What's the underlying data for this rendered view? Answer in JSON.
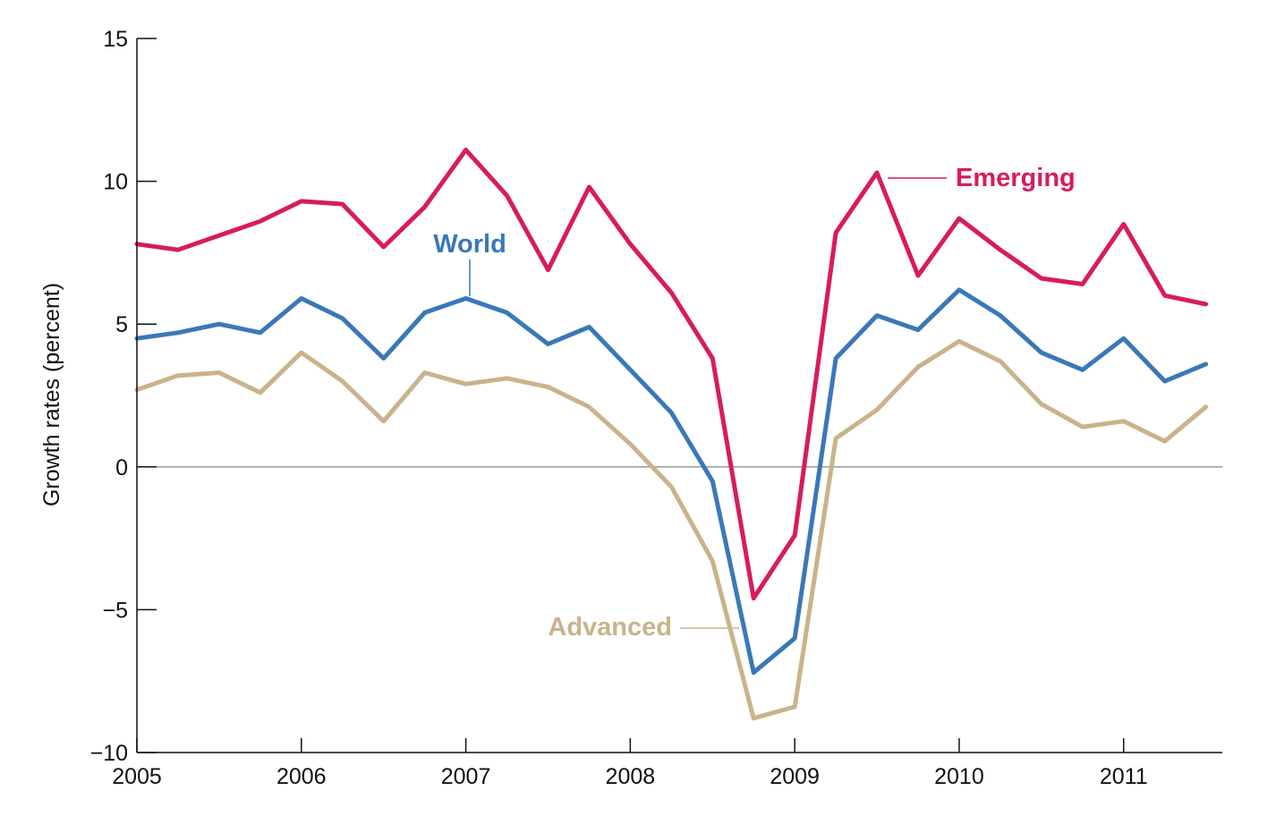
{
  "chart_data": {
    "type": "line",
    "title": "",
    "xlabel": "",
    "ylabel": "Growth rates (percent)",
    "xlim": [
      2005,
      2011.6
    ],
    "ylim": [
      -10,
      15
    ],
    "x_ticks": [
      2005,
      2006,
      2007,
      2008,
      2009,
      2010,
      2011
    ],
    "y_ticks": [
      -10,
      -5,
      0,
      5,
      10,
      15
    ],
    "y_tick_labels": [
      "−10",
      "−5",
      "0",
      "5",
      "10",
      "15"
    ],
    "x": [
      2005.0,
      2005.25,
      2005.5,
      2005.75,
      2006.0,
      2006.25,
      2006.5,
      2006.75,
      2007.0,
      2007.25,
      2007.5,
      2007.75,
      2008.0,
      2008.25,
      2008.5,
      2008.75,
      2009.0,
      2009.25,
      2009.5,
      2009.75,
      2010.0,
      2010.25,
      2010.5,
      2010.75,
      2011.0,
      2011.25,
      2011.5
    ],
    "series": [
      {
        "name": "Emerging",
        "color": "#d81b60",
        "values": [
          7.8,
          7.6,
          8.1,
          8.6,
          9.3,
          9.2,
          7.7,
          9.1,
          11.1,
          9.5,
          6.9,
          9.8,
          7.8,
          6.1,
          3.8,
          -4.6,
          -2.4,
          8.2,
          10.3,
          6.7,
          8.7,
          7.6,
          6.6,
          6.4,
          8.5,
          6.0,
          5.7
        ]
      },
      {
        "name": "World",
        "color": "#3a78b8",
        "values": [
          4.5,
          4.7,
          5.0,
          4.7,
          5.9,
          5.2,
          3.8,
          5.4,
          5.9,
          5.4,
          4.3,
          4.9,
          3.4,
          1.9,
          -0.5,
          -7.2,
          -6.0,
          3.8,
          5.3,
          4.8,
          6.2,
          5.3,
          4.0,
          3.4,
          4.5,
          3.0,
          3.6
        ]
      },
      {
        "name": "Advanced",
        "color": "#c9b38a",
        "values": [
          2.7,
          3.2,
          3.3,
          2.6,
          4.0,
          3.0,
          1.6,
          3.3,
          2.9,
          3.1,
          2.8,
          2.1,
          0.8,
          -0.7,
          -3.3,
          -8.8,
          -8.4,
          1.0,
          2.0,
          3.5,
          4.4,
          3.7,
          2.2,
          1.4,
          1.6,
          0.9,
          2.1
        ]
      }
    ],
    "zero_line": true,
    "grid": false,
    "legend": "inline-labels"
  }
}
